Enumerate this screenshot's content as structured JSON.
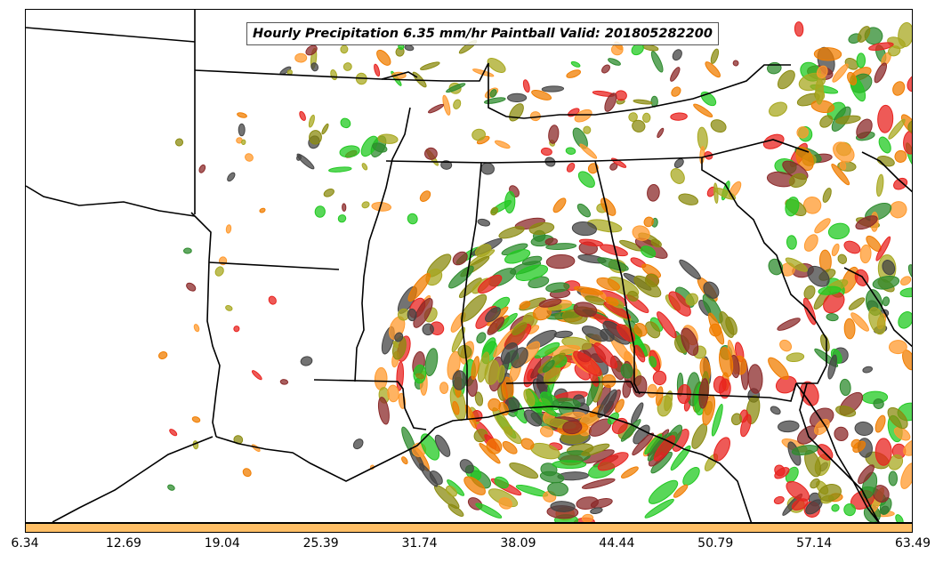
{
  "title": "Hourly Precipitation 6.35 mm/hr Paintball Valid: 201805282200",
  "colorbar": {
    "color": "#ffbf66",
    "ticks": [
      "6.34",
      "12.69",
      "19.04",
      "25.39",
      "31.74",
      "38.09",
      "44.44",
      "50.79",
      "57.14",
      "63.49"
    ]
  },
  "palette": [
    "#e8231f",
    "#f07d00",
    "#ff9a2e",
    "#8b8b10",
    "#2e8b2e",
    "#22c922",
    "#8b2a2a",
    "#444444",
    "#a8a820"
  ]
}
